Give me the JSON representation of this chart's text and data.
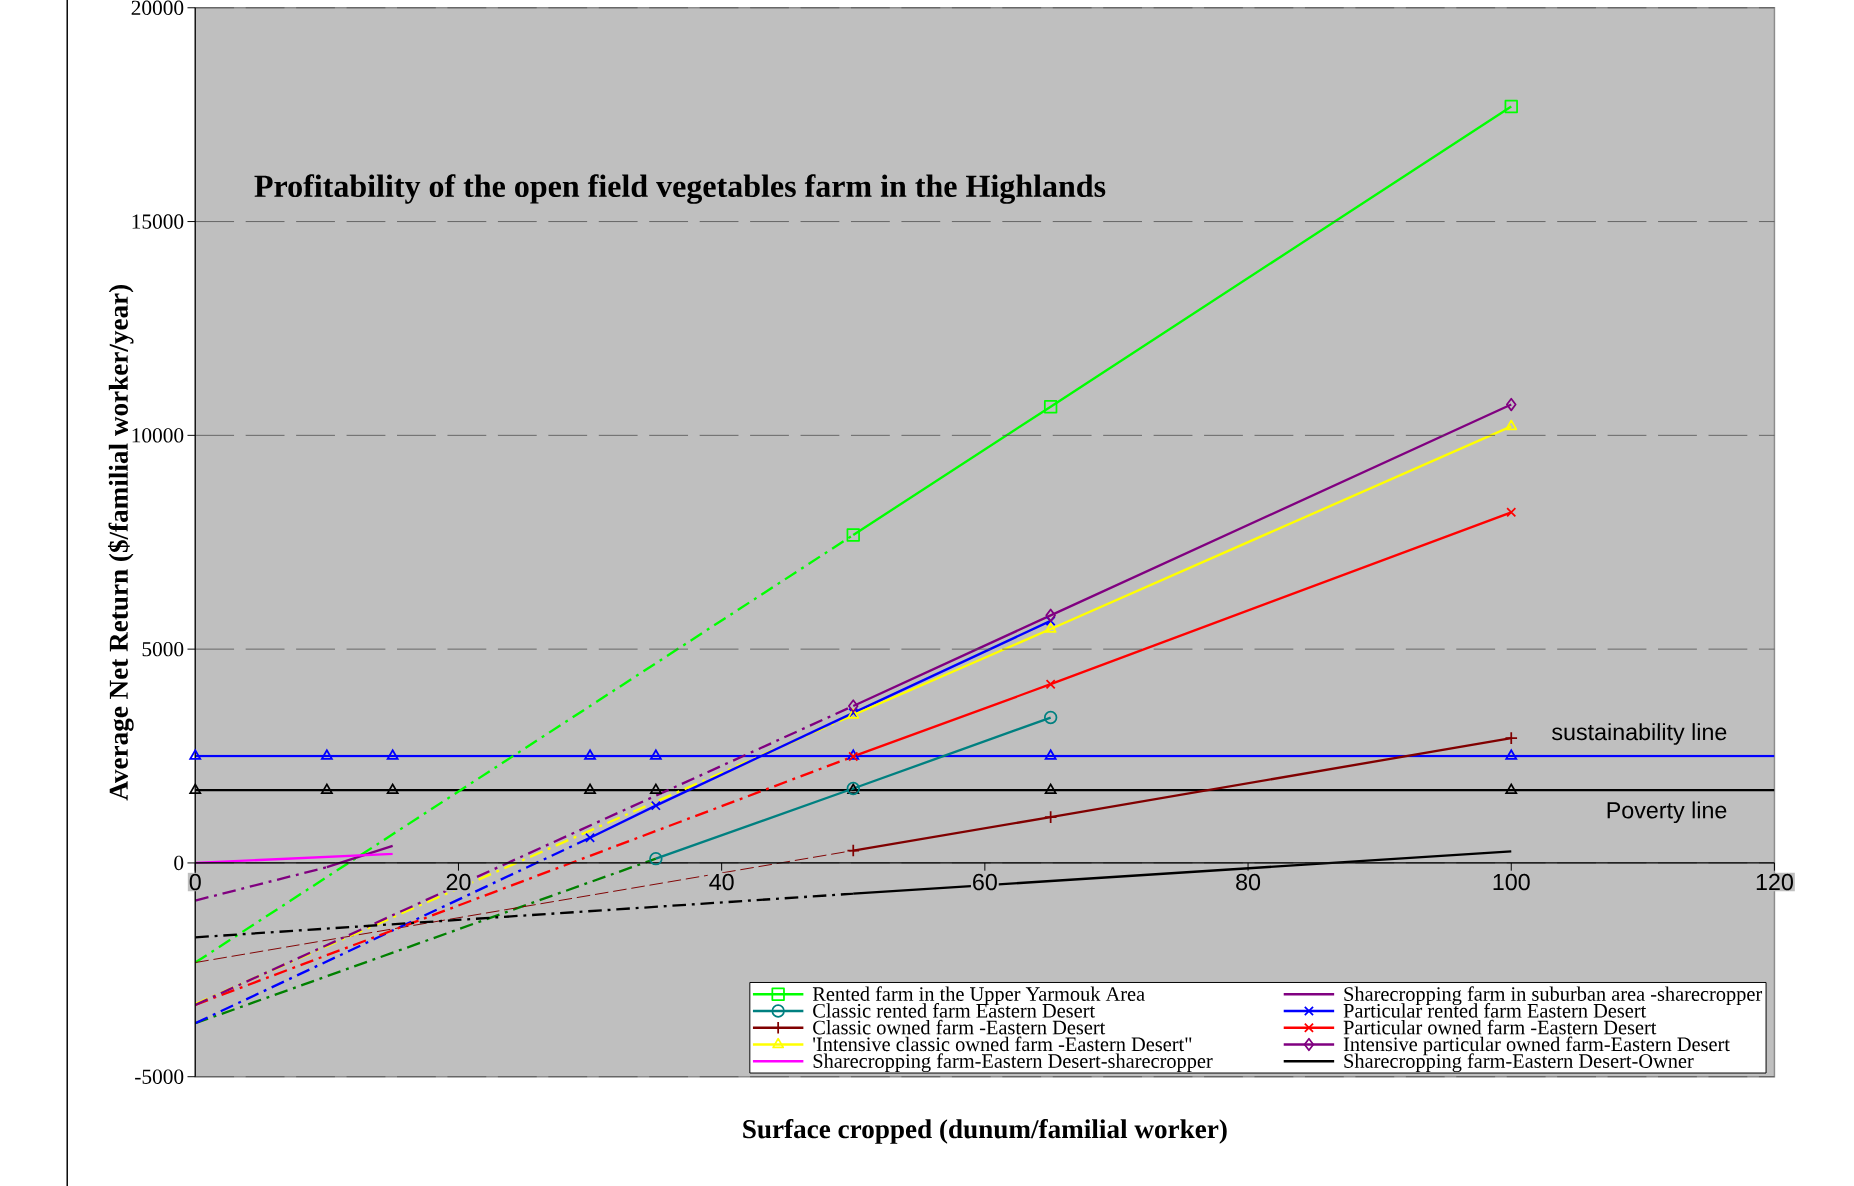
{
  "chart_data": {
    "type": "line",
    "title": "Profitability of the open field vegetables farm in the Highlands",
    "xlabel": "Surface cropped (dunum/familial worker)",
    "ylabel": "Average Net Return ($/familial worker/year)",
    "xlim": [
      0,
      120
    ],
    "xticks": [
      0,
      20,
      40,
      60,
      80,
      100,
      120
    ],
    "ylim": [
      -5000,
      20000
    ],
    "yticks": [
      -5000,
      0,
      5000,
      10000,
      15000,
      20000
    ],
    "grid": "y",
    "legend": "bottom right",
    "ref_lines": [
      {
        "axis": "y",
        "value": 2500,
        "label": "sustainability line",
        "color": "#0000ff"
      },
      {
        "axis": "y",
        "value": 1700,
        "label": "Poverty line",
        "color": "#000000"
      }
    ],
    "series": [
      {
        "line_style": "dashdot",
        "color": "#00ff00",
        "x": [
          0,
          50
        ],
        "values": [
          -2330,
          7670
        ]
      },
      {
        "line_style": "dashdot",
        "color": "#008000",
        "x": [
          0,
          35
        ],
        "values": [
          -3750,
          100
        ]
      },
      {
        "line_style": "dashed",
        "color": "#800000",
        "x": [
          0,
          50
        ],
        "values": [
          -2330,
          290
        ]
      },
      {
        "line_style": "dashdot",
        "color": "#0000ff",
        "x": [
          0,
          30
        ],
        "values": [
          -3750,
          590
        ]
      },
      {
        "line_style": "dashdot",
        "color": "#ff0000",
        "x": [
          0,
          50
        ],
        "values": [
          -3320,
          2490
        ]
      },
      {
        "line_style": "dashdot",
        "color": "#ffff00",
        "x": [
          0,
          50
        ],
        "values": [
          -3300,
          3460
        ]
      },
      {
        "line_style": "dashdot",
        "color": "#800080",
        "x": [
          0,
          50
        ],
        "values": [
          -3320,
          3670
        ]
      },
      {
        "line_style": "dashdot",
        "color": "#800080",
        "x": [
          0,
          10
        ],
        "values": [
          -880,
          -100
        ]
      },
      {
        "line_style": "dashdot",
        "color": "#000000",
        "x": [
          0,
          50
        ],
        "values": [
          -1740,
          -720
        ]
      },
      {
        "type": "scatter",
        "color": "#0000ff",
        "marker": "triangle",
        "x": [
          0,
          10,
          15,
          30,
          35,
          50,
          65,
          100
        ],
        "values": [
          2500,
          2500,
          2500,
          2500,
          2500,
          2500,
          2500,
          2500
        ]
      },
      {
        "type": "scatter",
        "color": "#000000",
        "marker": "triangle",
        "x": [
          0,
          10,
          15,
          30,
          35,
          50,
          65,
          100
        ],
        "values": [
          1700,
          1700,
          1700,
          1700,
          1700,
          1700,
          1700,
          1700
        ]
      },
      {
        "name": "Rented farm in the Upper Yarmouk Area",
        "color": "#00ff00",
        "marker": "square",
        "x": [
          50,
          65,
          100
        ],
        "values": [
          7670,
          10670,
          17690
        ]
      },
      {
        "name": "Sharecropping farm in suburban area -sharecropper",
        "color": "#800080",
        "x": [
          10,
          15
        ],
        "values": [
          -100,
          400
        ]
      },
      {
        "name": "Classic rented farm Eastern Desert",
        "color": "#008080",
        "marker": "circle",
        "x": [
          35,
          50,
          65
        ],
        "values": [
          100,
          1740,
          3400
        ]
      },
      {
        "name": "Particular rented farm Eastern Desert",
        "color": "#0000ff",
        "marker": "cross",
        "x": [
          30,
          35,
          50,
          65
        ],
        "values": [
          590,
          1340,
          3510,
          5660
        ]
      },
      {
        "name": "Classic owned farm -Eastern Desert",
        "color": "#800000",
        "marker": "plus",
        "x": [
          50,
          65,
          100
        ],
        "values": [
          290,
          1070,
          2920
        ]
      },
      {
        "name": "Particular owned farm -Eastern Desert",
        "color": "#ff0000",
        "marker": "cross",
        "x": [
          50,
          65,
          100
        ],
        "values": [
          2490,
          4180,
          8200
        ]
      },
      {
        "name": "'Intensive classic owned farm -Eastern Desert\"",
        "color": "#ffff00",
        "marker": "triangle",
        "x": [
          50,
          65,
          100
        ],
        "values": [
          3460,
          5470,
          10210
        ]
      },
      {
        "name": "Intensive particular owned farm-Eastern Desert",
        "color": "#800080",
        "marker": "diamond",
        "x": [
          50,
          65,
          100
        ],
        "values": [
          3670,
          5790,
          10720
        ]
      },
      {
        "name": "Sharecropping farm-Eastern Desert-sharecropper",
        "color": "#ff00ff",
        "x": [
          0,
          15
        ],
        "values": [
          0,
          210
        ]
      },
      {
        "name": "Sharecropping farm-Eastern Desert-Owner",
        "color": "#000000",
        "x": [
          50,
          100
        ],
        "values": [
          -720,
          270
        ]
      }
    ]
  }
}
